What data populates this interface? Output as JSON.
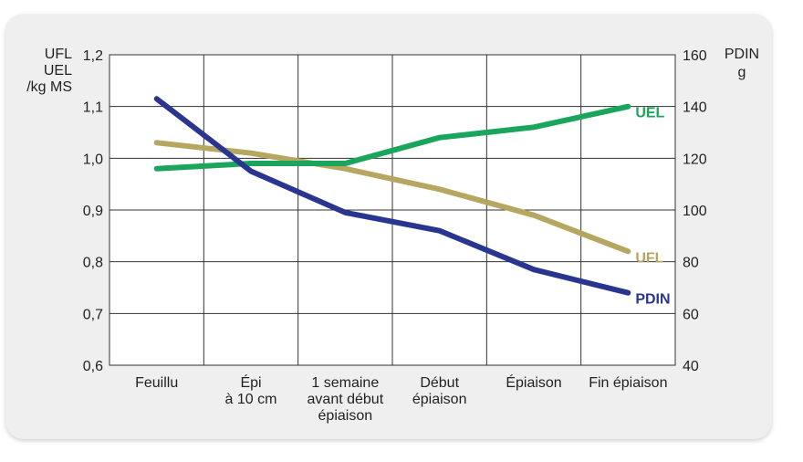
{
  "chart_data": {
    "type": "line",
    "categories": [
      [
        "Feuillu"
      ],
      [
        "Épi",
        "à 10 cm"
      ],
      [
        "1 semaine",
        "avant début",
        "épiaison"
      ],
      [
        "Début",
        "épiaison"
      ],
      [
        "Épiaison"
      ],
      [
        "Fin épiaison"
      ]
    ],
    "left_axis": {
      "label": [
        "UFL",
        "UEL",
        "/kg MS"
      ],
      "ylim": [
        0.6,
        1.2
      ],
      "ticks": [
        "0,6",
        "0,7",
        "0,8",
        "0,9",
        "1,0",
        "1,1",
        "1,2"
      ]
    },
    "right_axis": {
      "label": [
        "PDIN",
        "g"
      ],
      "ylim": [
        40,
        160
      ],
      "ticks": [
        "40",
        "60",
        "80",
        "100",
        "120",
        "140",
        "160"
      ]
    },
    "series": [
      {
        "name": "UEL",
        "axis": "left",
        "color": "#1aa55c",
        "values": [
          0.98,
          0.99,
          0.99,
          1.04,
          1.06,
          1.1
        ]
      },
      {
        "name": "UFL",
        "axis": "left",
        "color": "#b5a660",
        "values": [
          1.03,
          1.01,
          0.98,
          0.94,
          0.89,
          0.82
        ]
      },
      {
        "name": "PDIN",
        "axis": "right",
        "color": "#2a3590",
        "values": [
          143,
          115,
          99,
          92,
          77,
          68
        ]
      }
    ],
    "grid": true
  }
}
